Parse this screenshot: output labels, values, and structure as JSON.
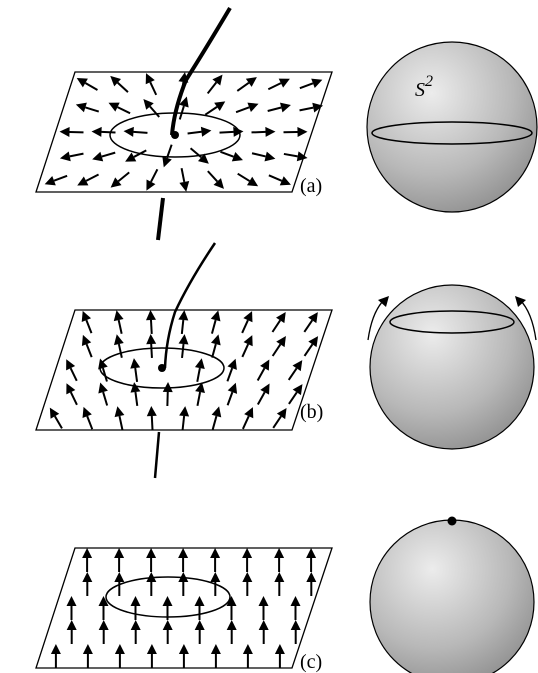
{
  "panels": [
    {
      "label": "(a)",
      "sphere_label": {
        "base": "S",
        "superscript": "2"
      }
    },
    {
      "label": "(b)"
    },
    {
      "label": "(c)"
    }
  ]
}
